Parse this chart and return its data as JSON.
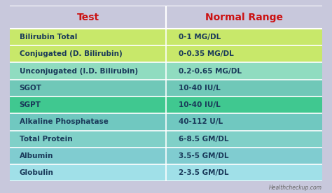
{
  "title_test": "Test",
  "title_range": "Normal Range",
  "title_color": "#cc1111",
  "header_bg": "#c8c8dc",
  "rows": [
    {
      "test": "Bilirubin Total",
      "range": "0-1 MG/DL",
      "bg": "#c8e86a"
    },
    {
      "test": "Conjugated (D. Bilirubin)",
      "range": "0-0.35 MG/DL",
      "bg": "#c8e86a"
    },
    {
      "test": "Unconjugated (I.D. Bilirubin)",
      "range": "0.2-0.65 MG/DL",
      "bg": "#90dcc0"
    },
    {
      "test": "SGOT",
      "range": "10-40 IU/L",
      "bg": "#70c8b8"
    },
    {
      "test": "SGPT",
      "range": "10-40 IU/L",
      "bg": "#40c890"
    },
    {
      "test": "Alkaline Phosphatase",
      "range": "40-112 U/L",
      "bg": "#70c8c0"
    },
    {
      "test": "Total Protein",
      "range": "6-8.5 GM/DL",
      "bg": "#80d0c8"
    },
    {
      "test": "Albumin",
      "range": "3.5-5 GM/DL",
      "bg": "#80ccd0"
    },
    {
      "test": "Globulin",
      "range": "2-3.5 GM/DL",
      "bg": "#a0e0e8"
    }
  ],
  "text_color": "#1a3a5a",
  "divider_color": "#ffffff",
  "watermark": "Healthcheckup.com",
  "watermark_color": "#666666",
  "col_split": 0.5,
  "fig_width": 4.74,
  "fig_height": 2.76,
  "dpi": 100
}
